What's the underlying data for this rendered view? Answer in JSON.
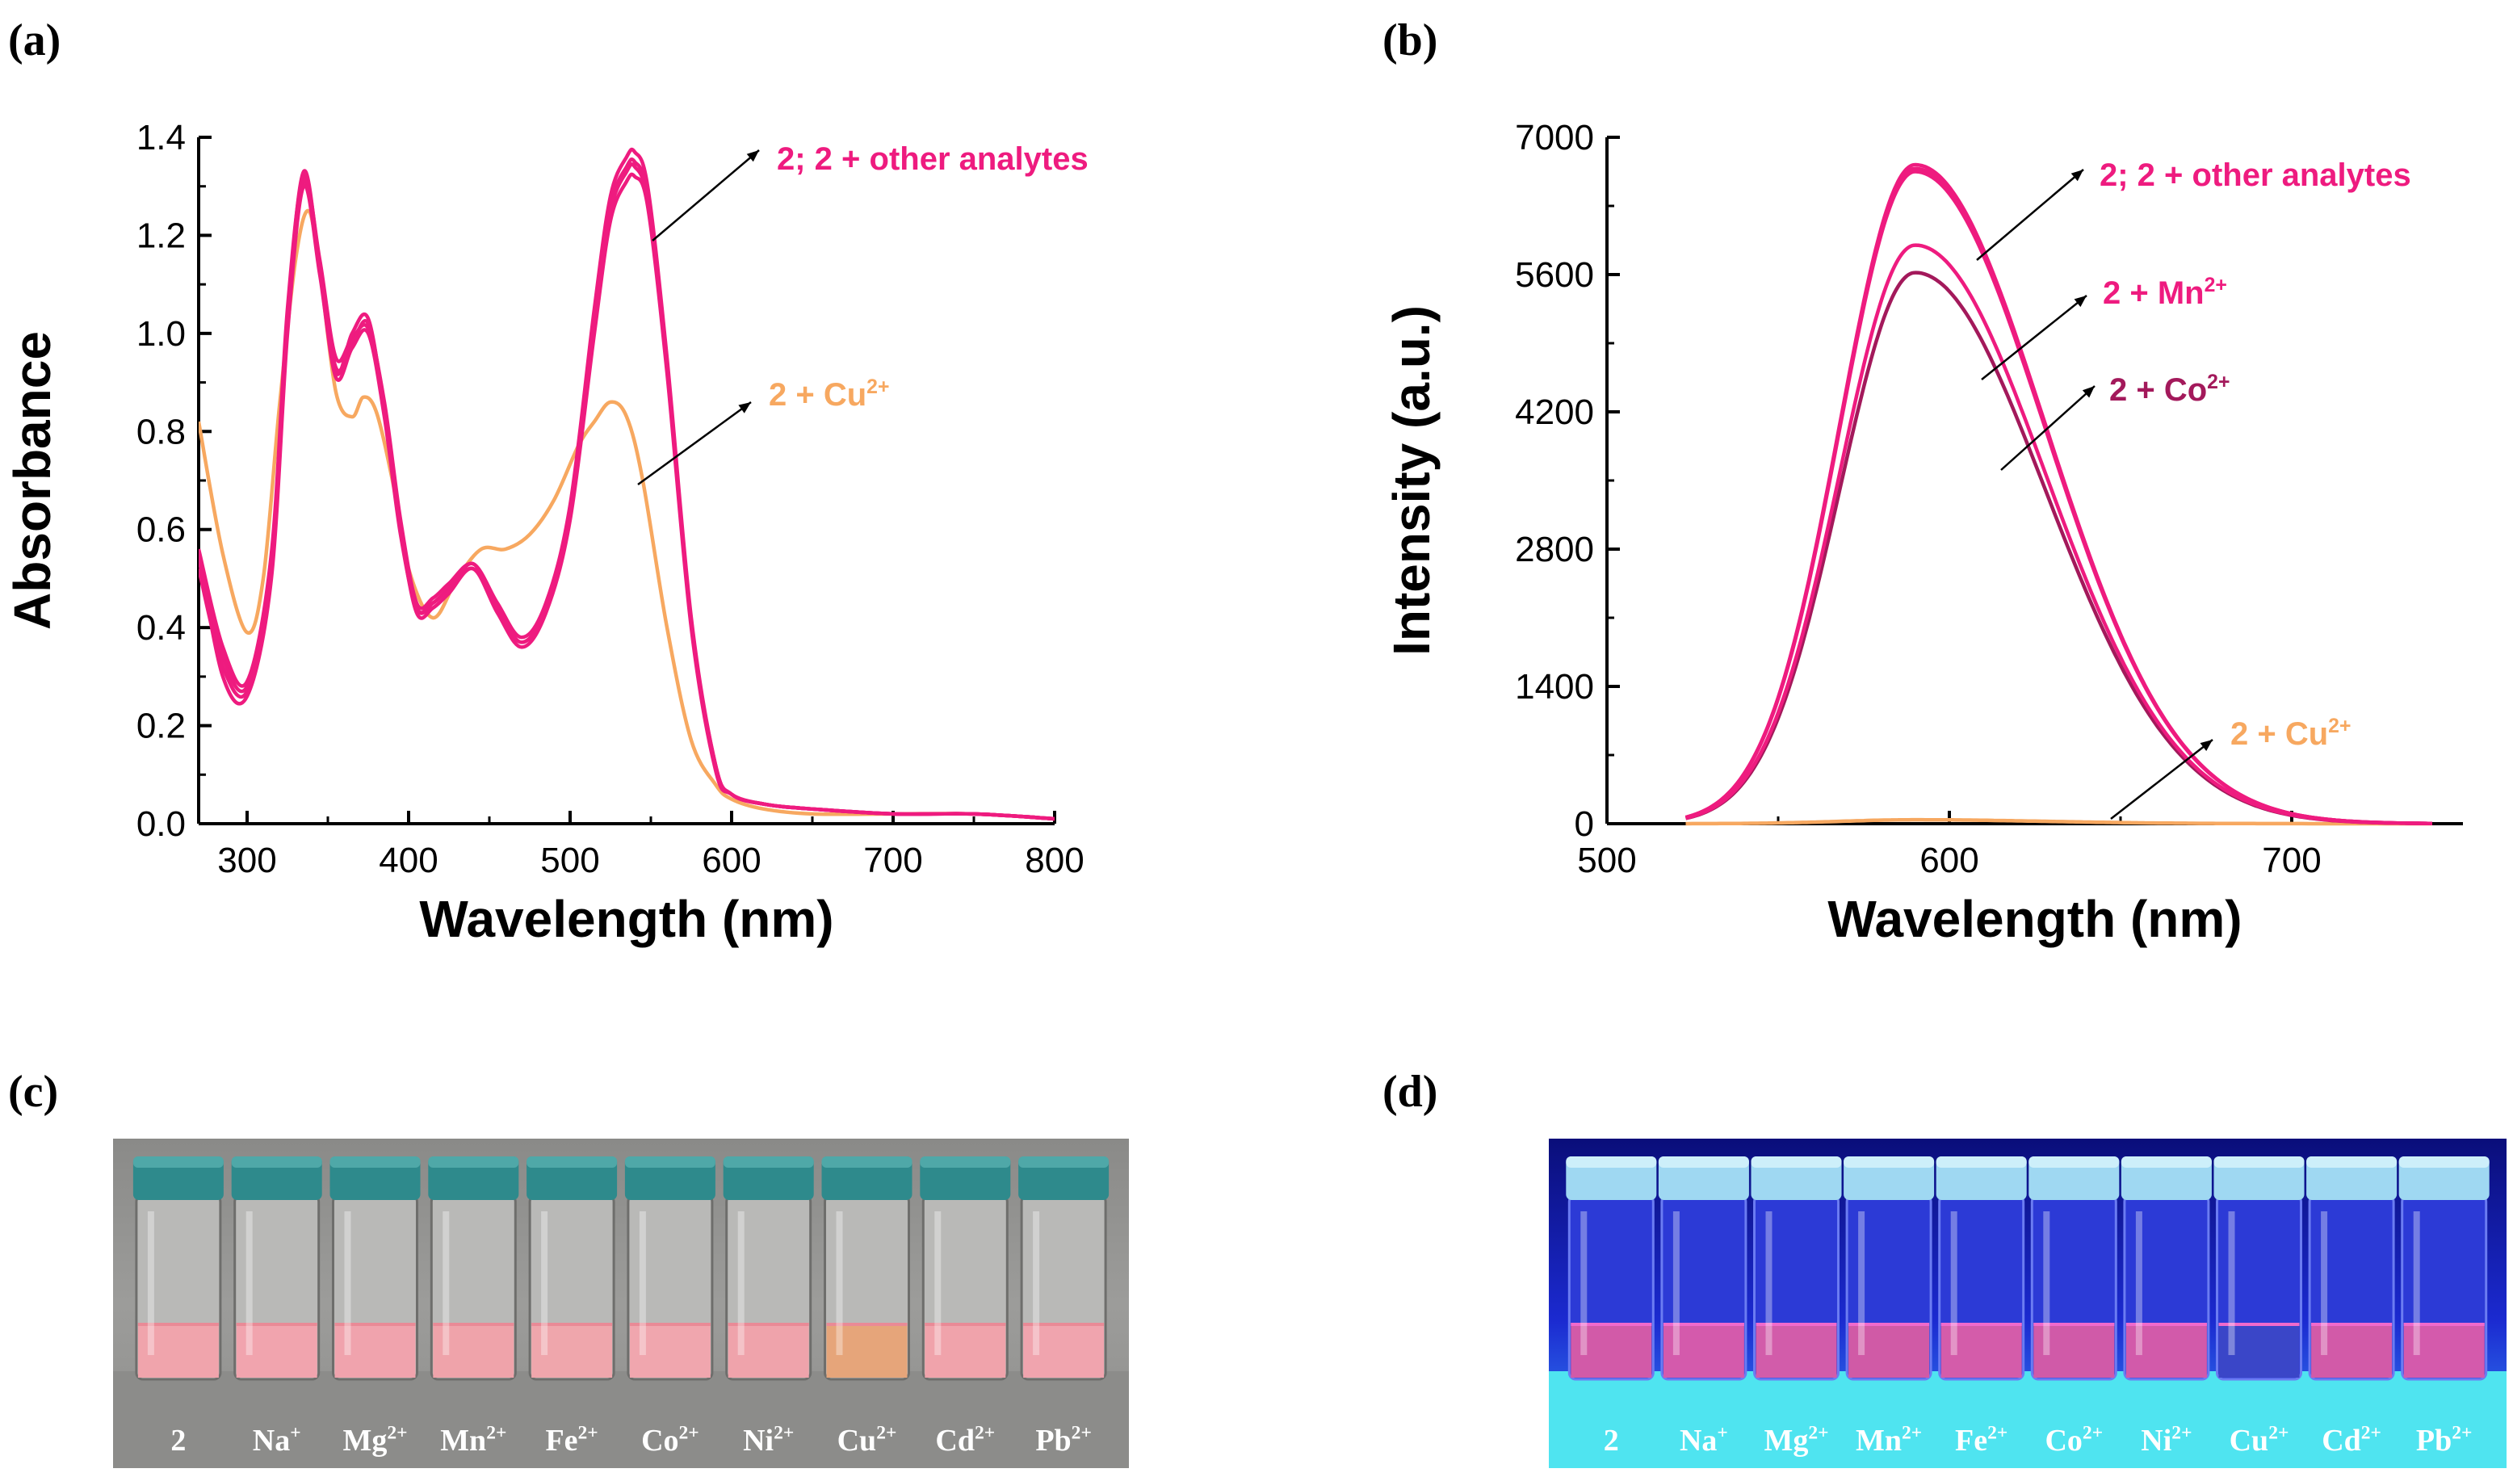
{
  "panel_labels": {
    "a": "(a)",
    "b": "(b)",
    "c": "(c)",
    "d": "(d)"
  },
  "colors": {
    "pink": "#EE1B7F",
    "orange": "#F7A860",
    "plum": "#A3195B",
    "axis": "#000000"
  },
  "chart_data": [
    {
      "id": "a",
      "type": "line",
      "title": "",
      "xlabel": "Wavelength (nm)",
      "ylabel": "Absorbance",
      "xlim": [
        270,
        800
      ],
      "ylim": [
        0,
        1.4
      ],
      "xticks": [
        300,
        400,
        500,
        600,
        700,
        800
      ],
      "yticks": [
        0.0,
        0.2,
        0.4,
        0.6,
        0.8,
        1.0,
        1.2,
        1.4
      ],
      "ytick_labels": [
        "0.0",
        "0.2",
        "0.4",
        "0.6",
        "0.8",
        "1.0",
        "1.2",
        "1.4"
      ],
      "annotations": [
        {
          "text": "2; 2 + other analytes",
          "color": "#EE1B7F",
          "sup": ""
        },
        {
          "text": "2 + Cu",
          "color": "#F7A860",
          "sup": "2+"
        }
      ],
      "series": [
        {
          "name": "2; 2 + other analytes",
          "color": "#EE1B7F",
          "x": [
            270,
            285,
            300,
            315,
            325,
            335,
            345,
            355,
            365,
            375,
            385,
            395,
            405,
            415,
            425,
            440,
            455,
            470,
            485,
            500,
            515,
            525,
            535,
            540,
            548,
            560,
            575,
            590,
            600,
            620,
            650,
            700,
            750,
            800
          ],
          "variants": [
            [
              0.56,
              0.36,
              0.29,
              0.55,
              1.05,
              1.32,
              1.15,
              0.95,
              0.99,
              1.01,
              0.86,
              0.62,
              0.45,
              0.46,
              0.49,
              0.53,
              0.45,
              0.38,
              0.45,
              0.65,
              1.05,
              1.28,
              1.36,
              1.37,
              1.3,
              0.95,
              0.42,
              0.12,
              0.06,
              0.04,
              0.03,
              0.02,
              0.02,
              0.01
            ],
            [
              0.54,
              0.34,
              0.28,
              0.53,
              1.03,
              1.33,
              1.14,
              0.93,
              0.98,
              1.02,
              0.85,
              0.61,
              0.44,
              0.45,
              0.48,
              0.52,
              0.44,
              0.37,
              0.44,
              0.64,
              1.03,
              1.26,
              1.34,
              1.35,
              1.28,
              0.93,
              0.41,
              0.12,
              0.06,
              0.04,
              0.03,
              0.02,
              0.02,
              0.01
            ],
            [
              0.52,
              0.32,
              0.27,
              0.51,
              1.01,
              1.31,
              1.13,
              0.92,
              1.0,
              1.03,
              0.84,
              0.6,
              0.43,
              0.44,
              0.47,
              0.52,
              0.43,
              0.36,
              0.43,
              0.62,
              1.0,
              1.23,
              1.31,
              1.32,
              1.26,
              0.92,
              0.4,
              0.11,
              0.06,
              0.04,
              0.03,
              0.02,
              0.02,
              0.01
            ],
            [
              0.55,
              0.3,
              0.26,
              0.5,
              1.0,
              1.3,
              1.12,
              0.91,
              0.97,
              1.0,
              0.83,
              0.59,
              0.44,
              0.45,
              0.48,
              0.53,
              0.44,
              0.37,
              0.44,
              0.63,
              1.02,
              1.25,
              1.33,
              1.34,
              1.27,
              0.94,
              0.41,
              0.12,
              0.06,
              0.04,
              0.03,
              0.02,
              0.02,
              0.01
            ]
          ]
        },
        {
          "name": "2 + Cu2+",
          "color": "#F7A860",
          "x": [
            270,
            285,
            300,
            310,
            320,
            330,
            338,
            345,
            355,
            365,
            372,
            380,
            390,
            400,
            415,
            430,
            445,
            460,
            475,
            490,
            505,
            515,
            525,
            535,
            545,
            560,
            575,
            590,
            600,
            620,
            650,
            700,
            750,
            800
          ],
          "variants": [
            [
              0.82,
              0.55,
              0.39,
              0.5,
              0.85,
              1.15,
              1.25,
              1.13,
              0.88,
              0.83,
              0.87,
              0.84,
              0.7,
              0.52,
              0.42,
              0.5,
              0.56,
              0.56,
              0.59,
              0.66,
              0.77,
              0.82,
              0.86,
              0.83,
              0.7,
              0.4,
              0.17,
              0.08,
              0.05,
              0.03,
              0.02,
              0.02,
              0.02,
              0.01
            ]
          ]
        }
      ]
    },
    {
      "id": "b",
      "type": "line",
      "title": "",
      "xlabel": "Wavelength (nm)",
      "ylabel": "Intensity (a.u.)",
      "xlim": [
        500,
        750
      ],
      "ylim": [
        0,
        7000
      ],
      "xticks": [
        500,
        600,
        700
      ],
      "yticks": [
        0,
        1400,
        2800,
        4200,
        5600,
        7000
      ],
      "ytick_labels": [
        "0",
        "1400",
        "2800",
        "4200",
        "5600",
        "7000"
      ],
      "annotations": [
        {
          "text": "2; 2 + other analytes",
          "color": "#EE1B7F",
          "sup": ""
        },
        {
          "text": "2 + Mn",
          "color": "#EE1B7F",
          "sup": "2+"
        },
        {
          "text": "2 + Co",
          "color": "#A3195B",
          "sup": "2+"
        },
        {
          "text": "2 + Cu",
          "color": "#F7A860",
          "sup": "2+"
        }
      ],
      "series": [
        {
          "name": "2; 2 + other analytes",
          "color": "#EE1B7F",
          "peak_x": 590,
          "peak": 6700,
          "x_start": 523,
          "x_end": 742,
          "variants": [
            6720,
            6680,
            6650
          ]
        },
        {
          "name": "2 + Mn2+",
          "color": "#EE1B7F",
          "peak_x": 590,
          "peak": 5900,
          "x_start": 523,
          "x_end": 742,
          "variants": [
            5900
          ]
        },
        {
          "name": "2 + Co2+",
          "color": "#A3195B",
          "peak_x": 590,
          "peak": 5620,
          "x_start": 523,
          "x_end": 742,
          "variants": [
            5620
          ]
        },
        {
          "name": "2 + Cu2+",
          "color": "#F7A860",
          "peak_x": 590,
          "peak": 40,
          "x_start": 523,
          "x_end": 742,
          "variants": [
            40
          ]
        }
      ]
    }
  ],
  "photo_c": {
    "labels": [
      {
        "base": "2",
        "sup": ""
      },
      {
        "base": "Na",
        "sup": "+"
      },
      {
        "base": "Mg",
        "sup": "2+"
      },
      {
        "base": "Mn",
        "sup": "2+"
      },
      {
        "base": "Fe",
        "sup": "2+"
      },
      {
        "base": "Co",
        "sup": "2+"
      },
      {
        "base": "Ni",
        "sup": "2+"
      },
      {
        "base": "Cu",
        "sup": "2+"
      },
      {
        "base": "Cd",
        "sup": "2+"
      },
      {
        "base": "Pb",
        "sup": "2+"
      }
    ],
    "liquid_colors": [
      "#F0A4AC",
      "#F1A4AE",
      "#F0A3AD",
      "#EFA3AA",
      "#EFA6AC",
      "#F0A6AE",
      "#EFA3AB",
      "#E6A57A",
      "#F0A3AB",
      "#F0A4AE"
    ]
  },
  "photo_d": {
    "labels": [
      {
        "base": "2",
        "sup": ""
      },
      {
        "base": "Na",
        "sup": "+"
      },
      {
        "base": "Mg",
        "sup": "2+"
      },
      {
        "base": "Mn",
        "sup": "2+"
      },
      {
        "base": "Fe",
        "sup": "2+"
      },
      {
        "base": "Co",
        "sup": "2+"
      },
      {
        "base": "Ni",
        "sup": "2+"
      },
      {
        "base": "Cu",
        "sup": "2+"
      },
      {
        "base": "Cd",
        "sup": "2+"
      },
      {
        "base": "Pb",
        "sup": "2+"
      }
    ],
    "liquid_colors": [
      "#D25AA8",
      "#D45AAC",
      "#D25CAA",
      "#D05AA6",
      "#D45CAA",
      "#D05AA8",
      "#D25AAA",
      "#3A46C8",
      "#D25AA8",
      "#D45AAC"
    ]
  }
}
